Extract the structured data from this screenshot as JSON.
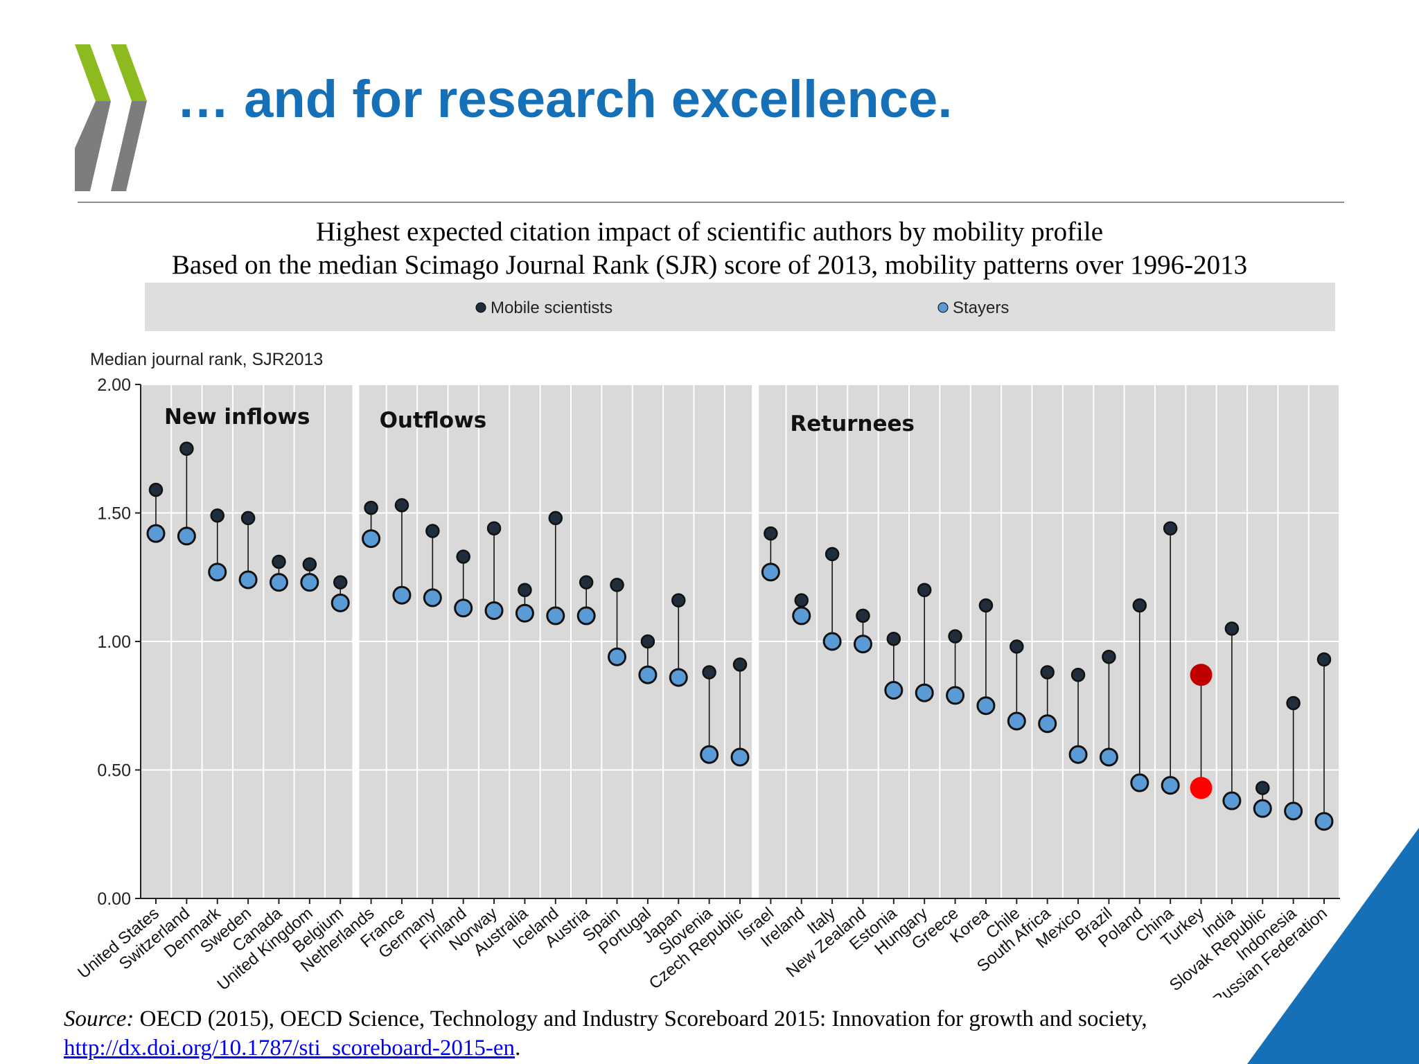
{
  "slide": {
    "title": "… and for research excellence."
  },
  "chart_data": {
    "type": "scatter",
    "title": "Highest expected citation impact of scientific authors by mobility profile",
    "subtitle": "Based on the median Scimago Journal Rank (SJR) score of 2013, mobility patterns over 1996-2013",
    "ylabel": "Median journal rank, SJR2013",
    "ylim": [
      0,
      2
    ],
    "yticks": [
      "0.00",
      "0.50",
      "1.00",
      "1.50",
      "2.00"
    ],
    "grid": true,
    "legend_position": "top",
    "legend": [
      {
        "name": "Mobile scientists",
        "color": "#1f2d3d"
      },
      {
        "name": "Stayers",
        "color": "#5b9bd5"
      }
    ],
    "highlight": {
      "category": "Turkey",
      "mobile_color": "#c00000",
      "stayer_color": "#ff0000"
    },
    "groups": [
      {
        "label": "New inflows",
        "start": 0,
        "end": 6
      },
      {
        "label": "Outflows",
        "start": 7,
        "end": 19
      },
      {
        "label": "Returnees",
        "start": 20,
        "end": 39
      }
    ],
    "categories": [
      "United States",
      "Switzerland",
      "Denmark",
      "Sweden",
      "Canada",
      "United Kingdom",
      "Belgium",
      "Netherlands",
      "France",
      "Germany",
      "Finland",
      "Norway",
      "Australia",
      "Iceland",
      "Austria",
      "Spain",
      "Portugal",
      "Japan",
      "Slovenia",
      "Czech Republic",
      "Israel",
      "Ireland",
      "Italy",
      "New Zealand",
      "Estonia",
      "Hungary",
      "Greece",
      "Korea",
      "Chile",
      "South Africa",
      "Mexico",
      "Brazil",
      "Poland",
      "China",
      "Turkey",
      "India",
      "Slovak Republic",
      "Indonesia",
      "Russian Federation"
    ],
    "series": [
      {
        "name": "Mobile scientists",
        "values": [
          1.59,
          1.75,
          1.49,
          1.48,
          1.31,
          1.3,
          1.23,
          1.52,
          1.53,
          1.43,
          1.33,
          1.44,
          1.2,
          1.48,
          1.23,
          1.22,
          1.0,
          1.16,
          0.88,
          0.91,
          1.42,
          1.16,
          1.34,
          1.1,
          1.01,
          1.2,
          1.02,
          1.14,
          0.98,
          0.88,
          0.87,
          0.94,
          1.14,
          1.44,
          0.87,
          1.05,
          0.43,
          0.76,
          0.93
        ]
      },
      {
        "name": "Stayers",
        "values": [
          1.42,
          1.41,
          1.27,
          1.24,
          1.23,
          1.23,
          1.15,
          1.4,
          1.18,
          1.17,
          1.13,
          1.12,
          1.11,
          1.1,
          1.1,
          0.94,
          0.87,
          0.86,
          0.56,
          0.55,
          1.27,
          1.1,
          1.0,
          0.99,
          0.81,
          0.8,
          0.79,
          0.75,
          0.69,
          0.68,
          0.56,
          0.55,
          0.45,
          0.44,
          0.43,
          0.38,
          0.35,
          0.34,
          0.3
        ]
      }
    ]
  },
  "source": {
    "lead": "Source:",
    "text": " OECD (2015), OECD Science, Technology and Industry Scoreboard 2015: Innovation for growth and society,  ",
    "link": "http://dx.doi.org/10.1787/sti_scoreboard-2015-en",
    "tail": "."
  }
}
